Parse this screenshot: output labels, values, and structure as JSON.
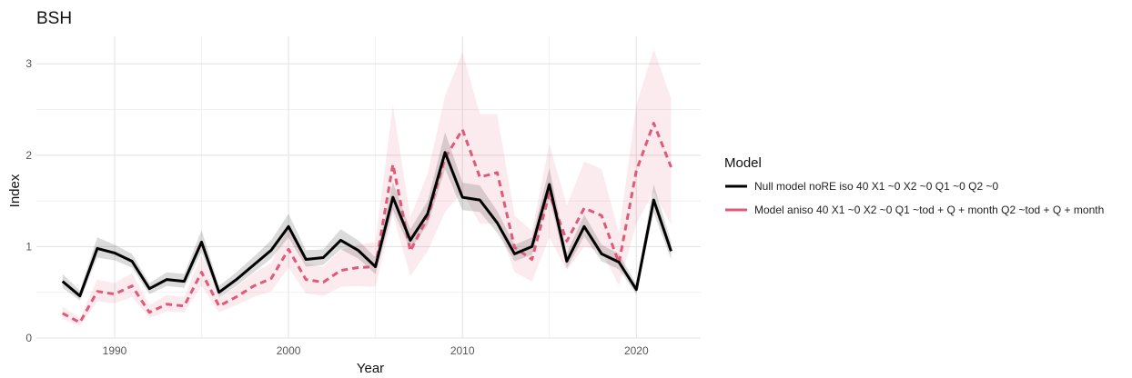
{
  "chart_data": {
    "type": "line",
    "title": "BSH",
    "xlabel": "Year",
    "ylabel": "Index",
    "xlim": [
      1985.5,
      2023.7
    ],
    "ylim": [
      0,
      3.3
    ],
    "xticks": [
      1990,
      2000,
      2010,
      2020
    ],
    "yticks": [
      0,
      1,
      2,
      3
    ],
    "grid": true,
    "legend": {
      "title": "Model",
      "placement": "right",
      "entries": [
        "Null model noRE iso 40 X1 ~0 X2 ~0 Q1 ~0 Q2 ~0",
        "Model aniso 40 X1 ~0 X2 ~0 Q1 ~tod + Q + month Q2 ~tod + Q + month"
      ]
    },
    "x": [
      1987,
      1988,
      1989,
      1990,
      1991,
      1992,
      1993,
      1994,
      1995,
      1996,
      1997,
      1998,
      1999,
      2000,
      2001,
      2002,
      2003,
      2004,
      2005,
      2006,
      2007,
      2008,
      2009,
      2010,
      2011,
      2012,
      2013,
      2014,
      2015,
      2016,
      2017,
      2018,
      2019,
      2020,
      2021,
      2022
    ],
    "series": [
      {
        "name": "Null model noRE iso 40 X1 ~0 X2 ~0 Q1 ~0 Q2 ~0",
        "color": "#000000",
        "line_style": "solid",
        "values": [
          0.62,
          0.46,
          0.98,
          0.93,
          0.84,
          0.54,
          0.64,
          0.62,
          1.05,
          0.5,
          0.64,
          0.8,
          0.96,
          1.22,
          0.86,
          0.88,
          1.07,
          0.96,
          0.78,
          1.54,
          1.07,
          1.36,
          2.03,
          1.54,
          1.51,
          1.26,
          0.92,
          1.0,
          1.68,
          0.84,
          1.22,
          0.92,
          0.83,
          0.53,
          1.51,
          0.95
        ],
        "lower": [
          0.55,
          0.41,
          0.88,
          0.85,
          0.77,
          0.48,
          0.57,
          0.55,
          0.94,
          0.44,
          0.57,
          0.72,
          0.87,
          1.1,
          0.78,
          0.8,
          0.97,
          0.87,
          0.7,
          1.4,
          0.97,
          1.24,
          1.85,
          1.4,
          1.38,
          1.15,
          0.84,
          0.91,
          1.53,
          0.76,
          1.11,
          0.84,
          0.75,
          0.48,
          1.37,
          0.86
        ],
        "upper": [
          0.7,
          0.52,
          1.1,
          1.02,
          0.92,
          0.6,
          0.72,
          0.7,
          1.18,
          0.57,
          0.72,
          0.89,
          1.07,
          1.36,
          0.96,
          0.97,
          1.19,
          1.07,
          0.88,
          1.7,
          1.19,
          1.5,
          2.25,
          1.7,
          1.67,
          1.39,
          1.02,
          1.1,
          1.86,
          0.93,
          1.35,
          1.02,
          0.92,
          0.59,
          1.68,
          1.05
        ]
      },
      {
        "name": "Model aniso 40 X1 ~0 X2 ~0 Q1 ~tod + Q + month Q2 ~tod + Q + month",
        "color": "#e05a78",
        "line_style": "dashed",
        "values": [
          0.27,
          0.17,
          0.51,
          0.48,
          0.57,
          0.28,
          0.37,
          0.35,
          0.72,
          0.35,
          0.45,
          0.57,
          0.65,
          0.97,
          0.64,
          0.61,
          0.74,
          0.77,
          0.78,
          1.9,
          0.95,
          1.32,
          1.97,
          2.28,
          1.76,
          1.81,
          0.99,
          0.86,
          1.58,
          1.06,
          1.42,
          1.34,
          0.82,
          1.83,
          2.35,
          1.87
        ],
        "lower": [
          0.21,
          0.13,
          0.4,
          0.38,
          0.45,
          0.22,
          0.29,
          0.28,
          0.57,
          0.28,
          0.36,
          0.45,
          0.51,
          0.77,
          0.49,
          0.46,
          0.56,
          0.57,
          0.56,
          1.35,
          0.68,
          0.95,
          1.38,
          1.6,
          1.25,
          1.25,
          0.72,
          0.62,
          1.1,
          0.74,
          1.0,
          0.95,
          0.57,
          1.25,
          1.6,
          1.24
        ],
        "upper": [
          0.34,
          0.22,
          0.64,
          0.6,
          0.71,
          0.36,
          0.47,
          0.45,
          0.91,
          0.44,
          0.56,
          0.71,
          0.82,
          1.22,
          0.82,
          0.78,
          0.96,
          1.02,
          1.05,
          2.55,
          1.32,
          1.8,
          2.65,
          3.13,
          2.45,
          2.45,
          1.34,
          1.17,
          2.12,
          1.45,
          1.93,
          1.85,
          1.15,
          2.55,
          3.16,
          2.62
        ]
      }
    ]
  }
}
